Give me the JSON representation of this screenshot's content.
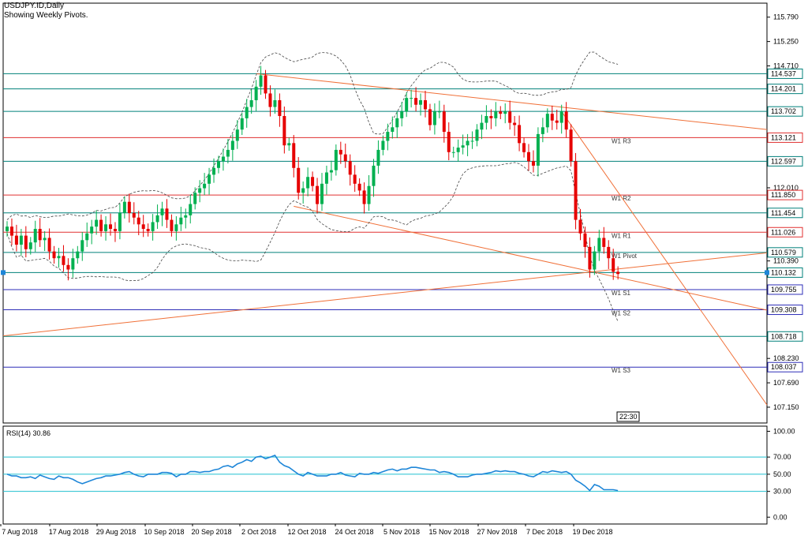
{
  "header": {
    "symbol": "USDJPY.ID,Daily",
    "subtitle": "Showing Weekly Pivots."
  },
  "time_box": "22:30",
  "colors": {
    "candle_up": "#00b050",
    "candle_down": "#e60000",
    "teal_line": "#00807a",
    "red_line": "#e03030",
    "blue_line": "#2e2eb8",
    "trend_line": "#f07038",
    "rsi_line": "#1e86d8",
    "rsi_level": "#22c0d0",
    "axis": "#000000"
  },
  "chart_data": [
    {
      "type": "candlestick",
      "title": "USDJPY.ID,Daily",
      "subtitle": "Showing Weekly Pivots.",
      "ylim": [
        106.8,
        116.1
      ],
      "y_ticks": [
        "115.790",
        "115.250",
        "114.710",
        "112.010",
        "110.390",
        "108.230",
        "107.690",
        "107.150"
      ],
      "x_tick_labels": [
        "7 Aug 2018",
        "17 Aug 2018",
        "29 Aug 2018",
        "10 Sep 2018",
        "20 Sep 2018",
        "2 Oct 2018",
        "12 Oct 2018",
        "24 Oct 2018",
        "5 Nov 2018",
        "15 Nov 2018",
        "27 Nov 2018",
        "7 Dec 2018",
        "19 Dec 2018"
      ],
      "price_tags": [
        {
          "value": "114.537",
          "kind": "teal"
        },
        {
          "value": "114.201",
          "kind": "teal"
        },
        {
          "value": "113.702",
          "kind": "teal"
        },
        {
          "value": "113.121",
          "kind": "red"
        },
        {
          "value": "112.597",
          "kind": "teal"
        },
        {
          "value": "111.850",
          "kind": "red"
        },
        {
          "value": "111.454",
          "kind": "teal"
        },
        {
          "value": "111.026",
          "kind": "red"
        },
        {
          "value": "110.579",
          "kind": "teal"
        },
        {
          "value": "110.132",
          "kind": "teal"
        },
        {
          "value": "109.755",
          "kind": "blue"
        },
        {
          "value": "109.308",
          "kind": "blue"
        },
        {
          "value": "108.718",
          "kind": "teal"
        },
        {
          "value": "108.037",
          "kind": "blue"
        }
      ],
      "pivot_labels": [
        {
          "text": "W1 R3",
          "value": 113.121
        },
        {
          "text": "W1 R2",
          "value": 111.85
        },
        {
          "text": "W1 R1",
          "value": 111.026
        },
        {
          "text": "W1 Pivot",
          "value": 110.579
        },
        {
          "text": "W1 S1",
          "value": 109.755
        },
        {
          "text": "W1 S2",
          "value": 109.308
        },
        {
          "text": "W1 S3",
          "value": 108.037
        }
      ],
      "closes": [
        111.15,
        110.95,
        110.75,
        110.95,
        110.65,
        110.8,
        111.1,
        110.85,
        110.9,
        110.6,
        110.45,
        110.5,
        110.3,
        110.2,
        110.45,
        110.6,
        110.85,
        111.0,
        111.15,
        111.3,
        111.05,
        111.2,
        111.1,
        111.05,
        111.45,
        111.7,
        111.45,
        111.35,
        111.2,
        111.1,
        111.05,
        111.25,
        111.4,
        111.55,
        111.3,
        111.05,
        111.2,
        111.35,
        111.4,
        111.65,
        111.9,
        112.0,
        112.1,
        112.3,
        112.45,
        112.6,
        112.7,
        112.85,
        113.05,
        113.3,
        113.55,
        113.8,
        113.95,
        114.25,
        114.5,
        114.1,
        113.8,
        113.95,
        113.6,
        112.95,
        113.0,
        112.45,
        111.9,
        112.0,
        112.25,
        112.05,
        111.65,
        112.1,
        112.35,
        112.4,
        112.85,
        112.75,
        112.6,
        112.3,
        112.1,
        111.95,
        111.65,
        112.05,
        112.5,
        112.85,
        113.05,
        113.25,
        113.35,
        113.55,
        113.7,
        114.0,
        114.0,
        113.85,
        113.95,
        113.75,
        113.4,
        113.7,
        113.7,
        113.25,
        112.8,
        112.8,
        112.9,
        112.95,
        113.05,
        113.05,
        113.3,
        113.45,
        113.6,
        113.55,
        113.7,
        113.65,
        113.7,
        113.45,
        113.4,
        113.0,
        112.8,
        112.6,
        112.5,
        113.2,
        113.35,
        113.65,
        113.5,
        113.45,
        113.7,
        113.3,
        112.6,
        111.3,
        111.0,
        110.7,
        110.2,
        110.6,
        110.9,
        110.7,
        110.45,
        110.15,
        110.1
      ],
      "overlays": {
        "horizontal_levels": [
          114.537,
          114.201,
          113.702,
          113.121,
          112.597,
          111.85,
          111.454,
          111.026,
          110.579,
          110.132,
          109.755,
          109.308,
          108.718,
          108.037
        ],
        "trend_lines": [
          {
            "from": [
              "2 Oct 2018",
              114.537
            ],
            "to": [
              "right_edge",
              113.3
            ]
          },
          {
            "from": [
              "12 Oct 2018",
              111.6
            ],
            "to": [
              "right_edge",
              109.3
            ]
          },
          {
            "from": [
              "7 Aug 2018",
              108.73
            ],
            "to": [
              "right_edge",
              110.57
            ]
          },
          {
            "from": [
              "7 Dec 2018",
              113.7
            ],
            "to": [
              "right_edge",
              107.2
            ]
          }
        ]
      }
    },
    {
      "type": "line",
      "title": "RSI(14) 30.86",
      "ylim": [
        -8,
        106
      ],
      "y_ticks": [
        "100.00",
        "70.00",
        "50.00",
        "30.00",
        "0.00"
      ],
      "levels": [
        70,
        50,
        30
      ],
      "last_value": 30.86,
      "values": [
        50,
        48,
        48,
        46,
        46,
        47,
        45,
        49,
        47,
        45,
        44,
        48,
        46,
        46,
        44,
        41,
        39,
        41,
        43,
        45,
        46,
        48,
        48,
        49,
        50,
        52,
        53,
        50,
        48,
        47,
        50,
        50,
        50,
        52,
        52,
        51,
        47,
        50,
        50,
        53,
        53,
        52,
        53,
        53,
        55,
        56,
        59,
        60,
        58,
        62,
        64,
        67,
        65,
        70,
        71,
        68,
        70,
        72,
        64,
        60,
        58,
        54,
        50,
        48,
        52,
        50,
        48,
        48,
        48,
        50,
        50,
        52,
        49,
        48,
        47,
        51,
        50,
        50,
        52,
        51,
        53,
        55,
        56,
        54,
        56,
        56,
        58,
        58,
        57,
        56,
        55,
        55,
        52,
        53,
        52,
        50,
        47,
        47,
        47,
        49,
        50,
        50,
        51,
        52,
        54,
        53,
        54,
        53,
        53,
        51,
        50,
        48,
        47,
        50,
        53,
        52,
        54,
        53,
        52,
        53,
        50,
        43,
        40,
        36,
        31,
        38,
        36,
        32,
        32,
        32,
        31
      ]
    }
  ]
}
